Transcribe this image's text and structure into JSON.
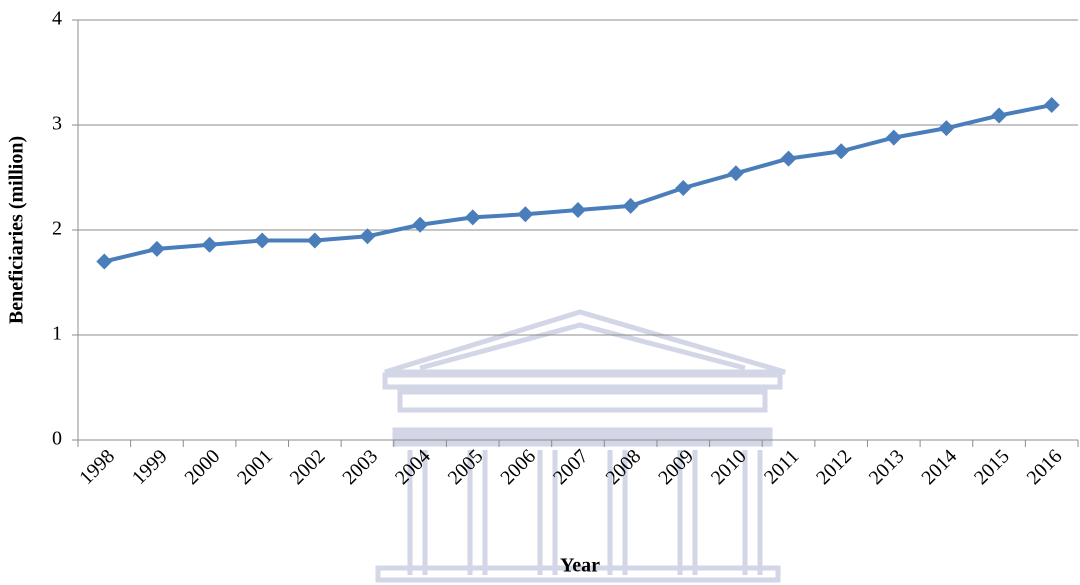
{
  "chart_data": {
    "type": "line",
    "x_label": "Year",
    "y_label": "Beneficiaries (million)",
    "categories": [
      "1998",
      "1999",
      "2000",
      "2001",
      "2002",
      "2003",
      "2004",
      "2005",
      "2006",
      "2007",
      "2008",
      "2009",
      "2010",
      "2011",
      "2012",
      "2013",
      "2014",
      "2015",
      "2016"
    ],
    "values": [
      1.7,
      1.82,
      1.86,
      1.9,
      1.9,
      1.94,
      2.05,
      2.12,
      2.15,
      2.19,
      2.23,
      2.4,
      2.54,
      2.68,
      2.75,
      2.88,
      2.97,
      3.09,
      3.19
    ],
    "color": "#4a7ebb",
    "ylim": [
      0,
      4
    ],
    "yticks": [
      0,
      1,
      2,
      3,
      4
    ],
    "grid": true
  }
}
